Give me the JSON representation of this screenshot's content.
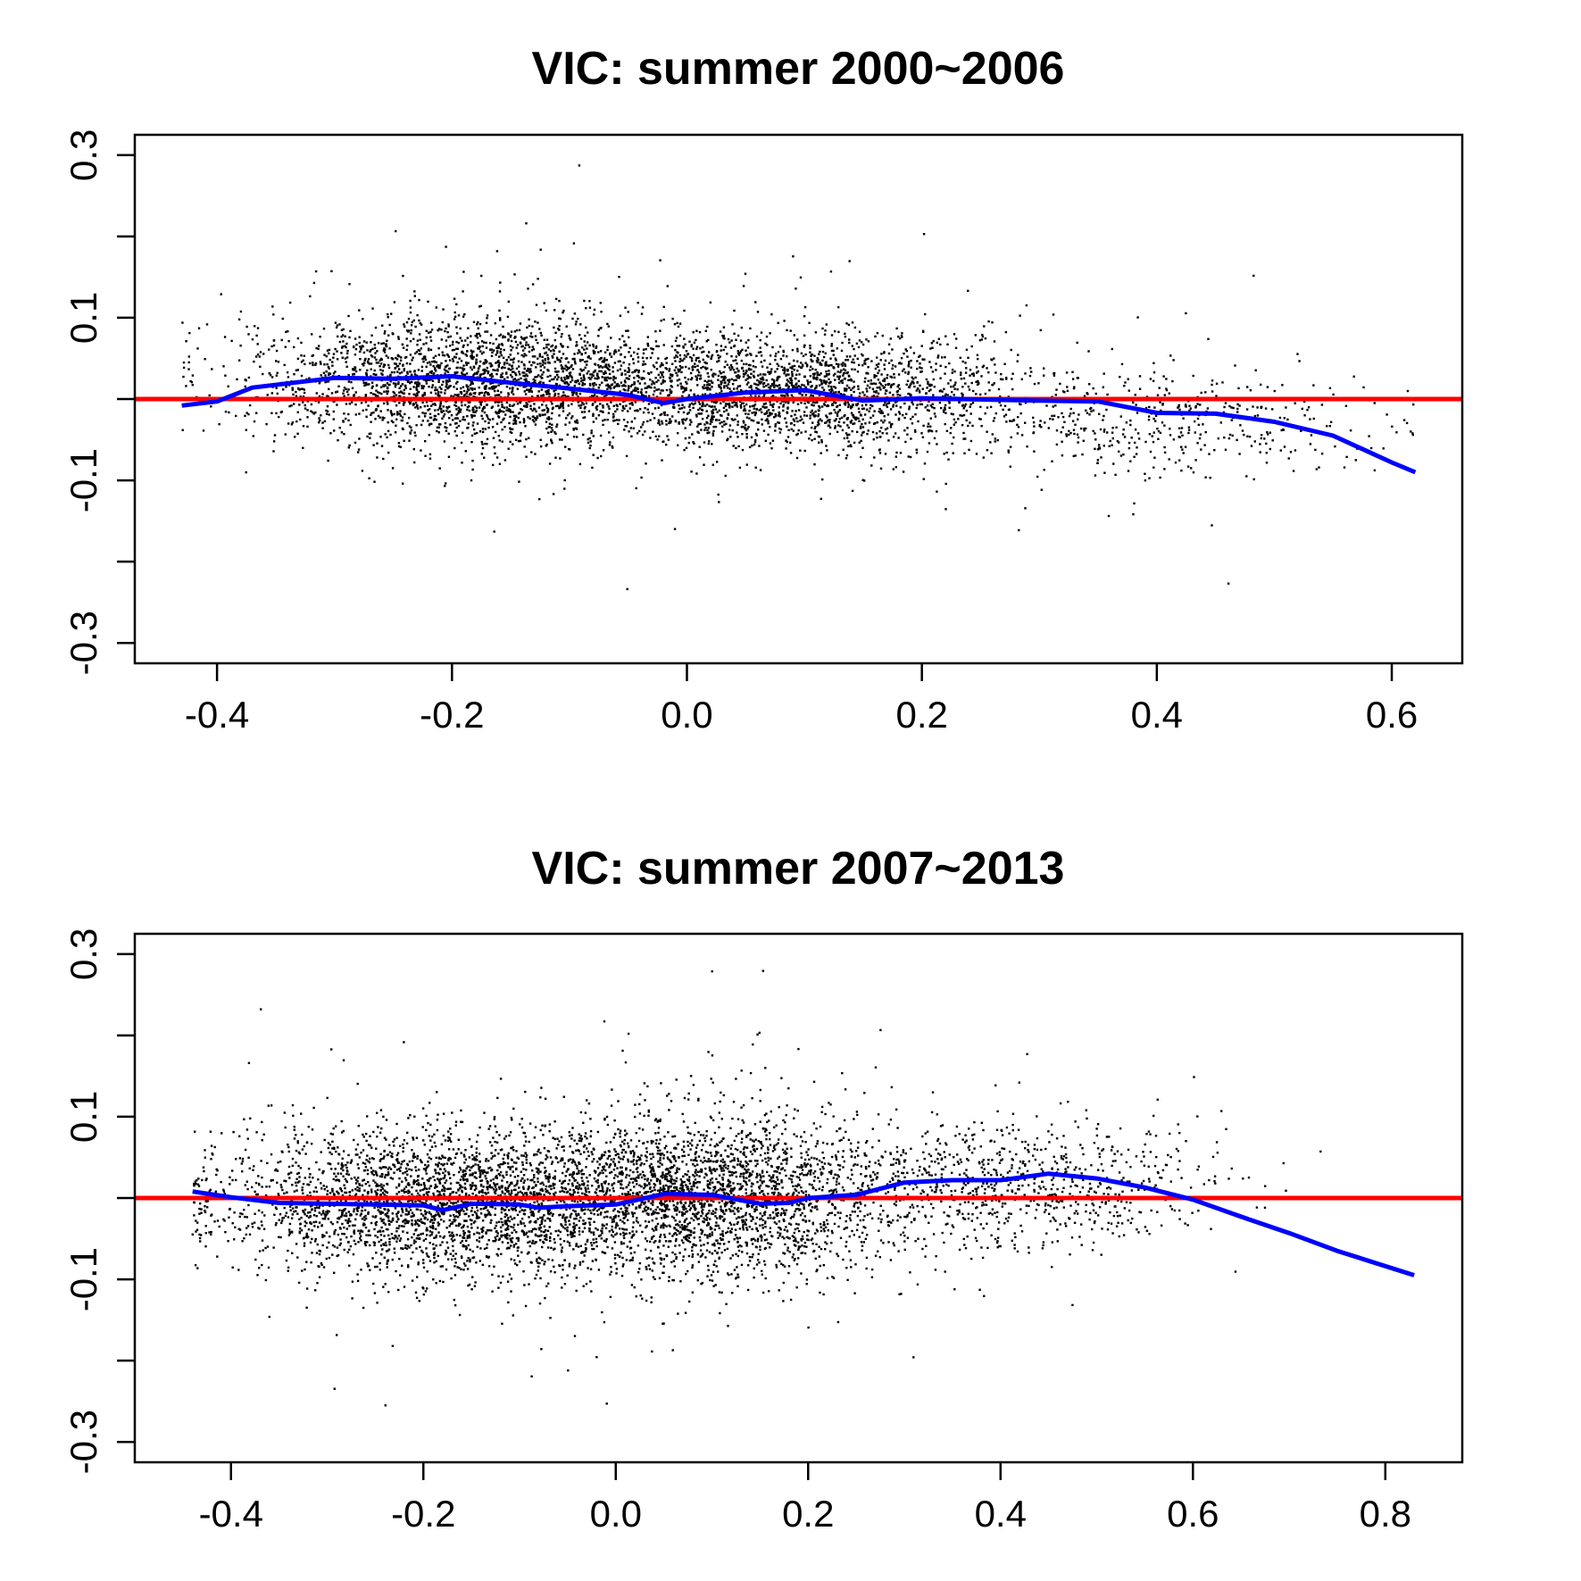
{
  "chart_data": [
    {
      "type": "scatter",
      "title": "VIC: summer 2000~2006",
      "xlabel": "",
      "ylabel": "",
      "xlim": [
        -0.47,
        0.66
      ],
      "ylim": [
        -0.325,
        0.325
      ],
      "x_ticks": [
        -0.4,
        -0.2,
        0.0,
        0.2,
        0.4,
        0.6
      ],
      "x_tick_labels": [
        "-0.4",
        "-0.2",
        "0.0",
        "0.2",
        "0.4",
        "0.6"
      ],
      "y_ticks": [
        -0.3,
        -0.2,
        -0.1,
        0.0,
        0.1,
        0.2,
        0.3
      ],
      "y_tick_labels": [
        "-0.3",
        "",
        "-0.1",
        "",
        "0.1",
        "",
        "0.3"
      ],
      "grid": false,
      "points_color": "#000000",
      "point_cloud": {
        "x_range": [
          -0.43,
          0.62
        ],
        "clusters": [
          {
            "x_mean": -0.17,
            "x_sd": 0.1,
            "y_mean": 0.022,
            "y_sd": 0.04,
            "share": 0.5
          },
          {
            "x_mean": 0.1,
            "x_sd": 0.09,
            "y_mean": 0.008,
            "y_sd": 0.036,
            "share": 0.4
          },
          {
            "x_mean": 0.4,
            "x_sd": 0.09,
            "y_mean": -0.03,
            "y_sd": 0.035,
            "share": 0.1
          }
        ]
      },
      "reference_line": {
        "y": 0,
        "color": "#ff0000"
      },
      "smooth_line": {
        "color": "#0000ff",
        "x": [
          -0.43,
          -0.4,
          -0.37,
          -0.3,
          -0.25,
          -0.2,
          -0.15,
          -0.1,
          -0.05,
          -0.02,
          0.0,
          0.05,
          0.1,
          0.15,
          0.2,
          0.3,
          0.35,
          0.4,
          0.45,
          0.5,
          0.55,
          0.6,
          0.62
        ],
        "y": [
          -0.008,
          -0.003,
          0.014,
          0.026,
          0.025,
          0.028,
          0.02,
          0.013,
          0.005,
          -0.005,
          0.0,
          0.008,
          0.011,
          -0.002,
          0.001,
          -0.002,
          -0.003,
          -0.017,
          -0.018,
          -0.028,
          -0.045,
          -0.078,
          -0.09
        ]
      }
    },
    {
      "type": "scatter",
      "title": "VIC: summer 2007~2013",
      "xlabel": "",
      "ylabel": "",
      "xlim": [
        -0.5,
        0.88
      ],
      "ylim": [
        -0.325,
        0.325
      ],
      "x_ticks": [
        -0.4,
        -0.2,
        0.0,
        0.2,
        0.4,
        0.6,
        0.8
      ],
      "x_tick_labels": [
        "-0.4",
        "-0.2",
        "0.0",
        "0.2",
        "0.4",
        "0.6",
        "0.8"
      ],
      "y_ticks": [
        -0.3,
        -0.2,
        -0.1,
        0.0,
        0.1,
        0.2,
        0.3
      ],
      "y_tick_labels": [
        "-0.3",
        "",
        "-0.1",
        "",
        "0.1",
        "",
        "0.3"
      ],
      "grid": false,
      "points_color": "#000000",
      "point_cloud": {
        "x_range": [
          -0.44,
          0.83
        ],
        "clusters": [
          {
            "x_mean": -0.18,
            "x_sd": 0.12,
            "y_mean": -0.005,
            "y_sd": 0.045,
            "share": 0.45
          },
          {
            "x_mean": 0.1,
            "x_sd": 0.1,
            "y_mean": 0.002,
            "y_sd": 0.05,
            "share": 0.42
          },
          {
            "x_mean": 0.42,
            "x_sd": 0.1,
            "y_mean": 0.015,
            "y_sd": 0.04,
            "share": 0.13
          }
        ]
      },
      "reference_line": {
        "y": 0,
        "color": "#ff0000"
      },
      "smooth_line": {
        "color": "#0000ff",
        "x": [
          -0.44,
          -0.4,
          -0.35,
          -0.3,
          -0.25,
          -0.2,
          -0.18,
          -0.15,
          -0.1,
          -0.08,
          -0.05,
          0.0,
          0.05,
          0.1,
          0.15,
          0.18,
          0.2,
          0.25,
          0.3,
          0.35,
          0.4,
          0.45,
          0.5,
          0.55,
          0.6,
          0.65,
          0.7,
          0.75,
          0.83
        ],
        "y": [
          0.008,
          0.001,
          -0.006,
          -0.007,
          -0.008,
          -0.009,
          -0.015,
          -0.007,
          -0.008,
          -0.012,
          -0.01,
          -0.008,
          0.005,
          0.004,
          -0.007,
          -0.006,
          0.0,
          0.004,
          0.019,
          0.022,
          0.022,
          0.03,
          0.024,
          0.013,
          -0.002,
          -0.023,
          -0.043,
          -0.065,
          -0.095
        ]
      }
    }
  ]
}
